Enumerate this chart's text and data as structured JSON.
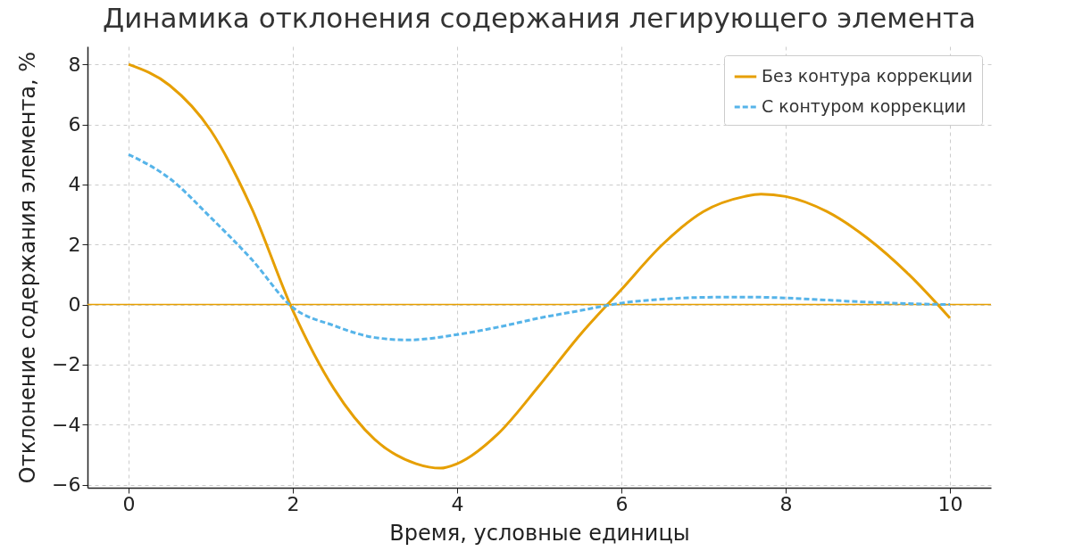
{
  "chart_data": {
    "type": "line",
    "title": "Динамика отклонения содержания легирующего элемента",
    "xlabel": "Время, условные единицы",
    "ylabel": "Отклонение содержания элемента, %",
    "xlim": [
      -0.5,
      10.5
    ],
    "ylim": [
      -6.1,
      8.6
    ],
    "xticks": [
      0,
      2,
      4,
      6,
      8,
      10
    ],
    "yticks": [
      -6,
      -4,
      -2,
      0,
      2,
      4,
      6,
      8
    ],
    "grid": true,
    "legend": "top right",
    "series": [
      {
        "name": "Без контура коррекции",
        "color": "#e69f00",
        "line_style": "solid",
        "x": [
          0,
          0.5,
          1,
          1.5,
          2,
          2.5,
          3,
          3.5,
          3.8,
          4,
          4.5,
          5,
          5.5,
          6,
          6.5,
          7,
          7.5,
          7.7,
          8,
          8.5,
          9,
          9.5,
          10
        ],
        "values": [
          8,
          7.3,
          5.8,
          3.2,
          -0.2,
          -2.8,
          -4.5,
          -5.3,
          -5.45,
          -5.3,
          -4.3,
          -2.7,
          -1.0,
          0.5,
          2.0,
          3.1,
          3.6,
          3.68,
          3.6,
          3.1,
          2.2,
          1.0,
          -0.45
        ]
      },
      {
        "name": "С контуром коррекции",
        "color": "#56b4e9",
        "line_style": "dashed",
        "x": [
          0,
          0.5,
          1,
          1.5,
          2,
          2.5,
          3,
          3.4,
          4,
          4.5,
          5,
          5.5,
          6,
          6.5,
          7,
          7.5,
          8,
          8.5,
          9,
          9.5,
          10
        ],
        "values": [
          5,
          4.2,
          2.9,
          1.5,
          -0.1,
          -0.7,
          -1.1,
          -1.18,
          -1.0,
          -0.75,
          -0.45,
          -0.2,
          0.05,
          0.18,
          0.24,
          0.25,
          0.22,
          0.15,
          0.08,
          0.03,
          0
        ]
      }
    ],
    "ref_lines": [
      {
        "axis": "y",
        "value": 0,
        "color": "#e69f00",
        "line_style": "solid"
      }
    ]
  }
}
